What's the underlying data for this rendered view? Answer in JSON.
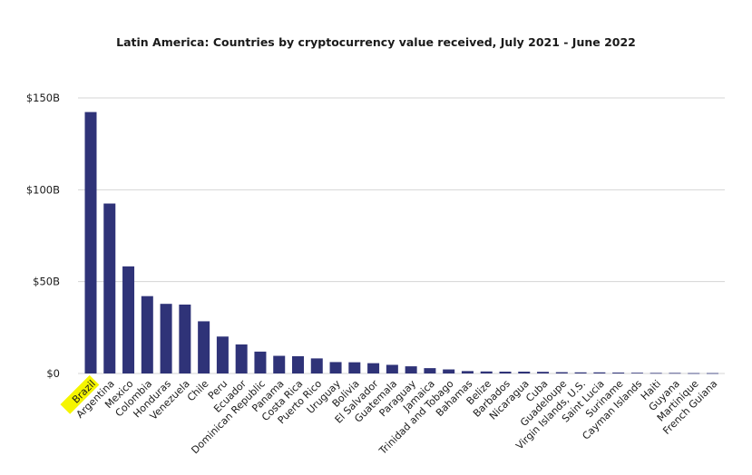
{
  "chart_data": {
    "type": "bar",
    "title": "Latin America: Countries by cryptocurrency value received, July 2021 - June 2022",
    "xlabel": "",
    "ylabel": "",
    "y_ticks": [
      "$0",
      "$50B",
      "$100B",
      "$150B"
    ],
    "y_tick_values": [
      0,
      50,
      100,
      150
    ],
    "ylim": [
      0,
      150
    ],
    "grid": true,
    "bar_color": "#2f3378",
    "highlight_color": "#f5f500",
    "highlight_category": "Brazil",
    "categories": [
      "Brazil",
      "Argentina",
      "Mexico",
      "Colombia",
      "Honduras",
      "Venezuela",
      "Chile",
      "Peru",
      "Ecuador",
      "Dominican Republic",
      "Panama",
      "Costa Rica",
      "Puerto Rico",
      "Uruguay",
      "Bolivia",
      "El Salvador",
      "Guatemala",
      "Paraguay",
      "Jamaica",
      "Trinidad and Tobago",
      "Bahamas",
      "Belize",
      "Barbados",
      "Nicaragua",
      "Cuba",
      "Guadeloupe",
      "Virgin Islands, U.S.",
      "Saint Lucia",
      "Suriname",
      "Cayman Islands",
      "Haiti",
      "Guyana",
      "Martinique",
      "French Guiana"
    ],
    "values": [
      142.3,
      92.5,
      58.3,
      42.1,
      37.9,
      37.5,
      28.4,
      20.1,
      15.8,
      11.9,
      9.6,
      9.4,
      8.2,
      6.2,
      6.1,
      5.6,
      4.7,
      3.9,
      2.9,
      2.2,
      1.3,
      1.1,
      1.0,
      1.0,
      0.9,
      0.7,
      0.6,
      0.6,
      0.5,
      0.4,
      0.3,
      0.3,
      0.2,
      0.2
    ]
  }
}
